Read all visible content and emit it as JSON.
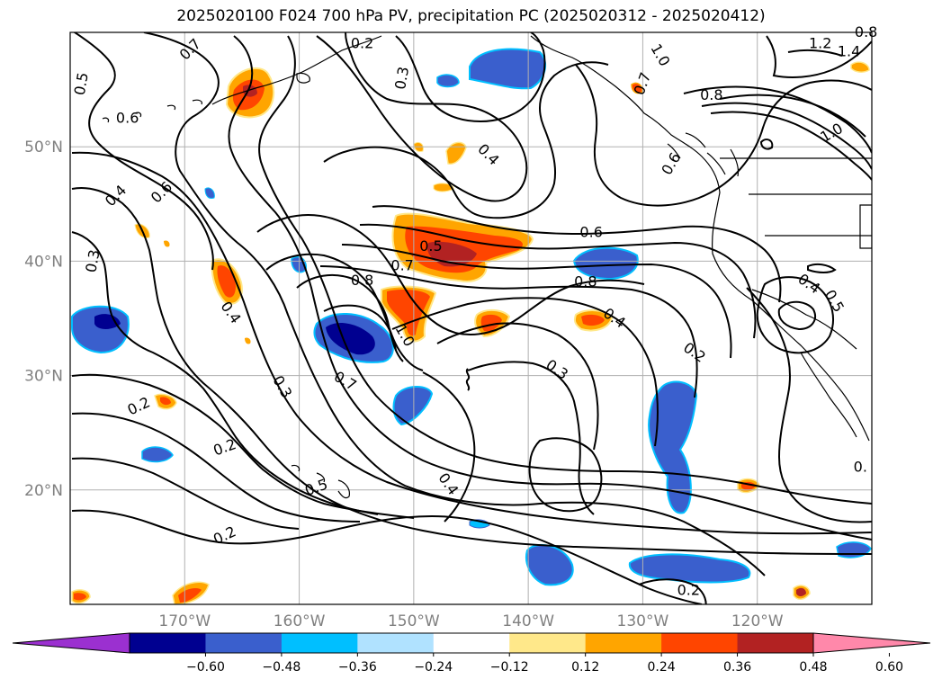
{
  "title": "2025020100 F024 700 hPa PV, precipitation PC (2025020312 - 2025020412)",
  "map": {
    "lon_range": [
      -180,
      -110
    ],
    "lat_range": [
      10,
      60
    ],
    "lat_ticks": [
      {
        "value": 20,
        "label": "20°N"
      },
      {
        "value": 30,
        "label": "30°N"
      },
      {
        "value": 40,
        "label": "40°N"
      },
      {
        "value": 50,
        "label": "50°N"
      }
    ],
    "lon_ticks": [
      {
        "value": -170,
        "label": "170°W"
      },
      {
        "value": -160,
        "label": "160°W"
      },
      {
        "value": -150,
        "label": "150°W"
      },
      {
        "value": -140,
        "label": "140°W"
      },
      {
        "value": -130,
        "label": "130°W"
      },
      {
        "value": -120,
        "label": "120°W"
      }
    ],
    "gridlines": true,
    "colors": {
      "coast": "#000000",
      "grid": "#b0b0b0",
      "contour": "#000000"
    }
  },
  "colorbar": {
    "ticks": [
      "−0.60",
      "−0.48",
      "−0.36",
      "−0.24",
      "−0.12",
      "0.12",
      "0.24",
      "0.36",
      "0.48",
      "0.60"
    ],
    "colors": [
      "#9b30d0",
      "#000090",
      "#3a5fcd",
      "#00bfff",
      "#b0e2ff",
      "#ffffff",
      "#ffe88a",
      "#ffa500",
      "#ff4500",
      "#b22222",
      "#ff88aa"
    ],
    "extend": "both"
  },
  "pv_labels": [
    {
      "lon": -169.5,
      "lat": 58.5,
      "text": "0.7",
      "rot": 45
    },
    {
      "lon": -154.5,
      "lat": 59,
      "text": "0.2",
      "rot": 0
    },
    {
      "lon": -179,
      "lat": 55.5,
      "text": "0.5",
      "rot": 80
    },
    {
      "lon": -175,
      "lat": 52.5,
      "text": "0.6",
      "rot": 0
    },
    {
      "lon": -151,
      "lat": 56,
      "text": "0.3",
      "rot": 80
    },
    {
      "lon": -130,
      "lat": 55.5,
      "text": "0.7",
      "rot": 70
    },
    {
      "lon": -128.5,
      "lat": 58,
      "text": "1.0",
      "rot": -60
    },
    {
      "lon": -127.5,
      "lat": 48.5,
      "text": "0.6",
      "rot": 60
    },
    {
      "lon": -114.5,
      "lat": 59,
      "text": "1.2",
      "rot": 0
    },
    {
      "lon": -112,
      "lat": 58.3,
      "text": "1.4",
      "rot": 0
    },
    {
      "lon": -110.5,
      "lat": 60,
      "text": "0.8",
      "rot": 0
    },
    {
      "lon": -124,
      "lat": 54.5,
      "text": "0.8",
      "rot": 0
    },
    {
      "lon": -113.5,
      "lat": 51.2,
      "text": "1.0",
      "rot": 30
    },
    {
      "lon": -143.5,
      "lat": 49.3,
      "text": "0.4",
      "rot": -45
    },
    {
      "lon": -176,
      "lat": 45.7,
      "text": "0.4",
      "rot": 45
    },
    {
      "lon": -172,
      "lat": 46,
      "text": "0.6",
      "rot": 45
    },
    {
      "lon": -178,
      "lat": 40,
      "text": "0.3",
      "rot": 80
    },
    {
      "lon": -148.5,
      "lat": 41.3,
      "text": "0.5",
      "rot": 0
    },
    {
      "lon": -151,
      "lat": 39.6,
      "text": "0.7",
      "rot": 0
    },
    {
      "lon": -154.5,
      "lat": 38.3,
      "text": "0.8",
      "rot": 0
    },
    {
      "lon": -134.5,
      "lat": 42.5,
      "text": "0.6",
      "rot": 0
    },
    {
      "lon": -135,
      "lat": 38.2,
      "text": "0.8",
      "rot": 0
    },
    {
      "lon": -150.8,
      "lat": 33.5,
      "text": "1.0",
      "rot": -60
    },
    {
      "lon": -166,
      "lat": 35.5,
      "text": "0.4",
      "rot": -55
    },
    {
      "lon": -161.5,
      "lat": 29,
      "text": "0.3",
      "rot": -60
    },
    {
      "lon": -156,
      "lat": 29.5,
      "text": "0.7",
      "rot": -30
    },
    {
      "lon": -132.5,
      "lat": 35,
      "text": "0.4",
      "rot": -35
    },
    {
      "lon": -125.5,
      "lat": 32,
      "text": "0.2",
      "rot": -35
    },
    {
      "lon": -137.5,
      "lat": 30.5,
      "text": "0.3",
      "rot": -35
    },
    {
      "lon": -115.5,
      "lat": 38,
      "text": "0.4",
      "rot": -35
    },
    {
      "lon": -113.3,
      "lat": 36.5,
      "text": "0.5",
      "rot": -60
    },
    {
      "lon": -174,
      "lat": 27.3,
      "text": "0.2",
      "rot": 25
    },
    {
      "lon": -166.5,
      "lat": 23.7,
      "text": "0.2",
      "rot": 20
    },
    {
      "lon": -158.5,
      "lat": 20.2,
      "text": "0.5",
      "rot": 20
    },
    {
      "lon": -147,
      "lat": 20.5,
      "text": "0.4",
      "rot": -55
    },
    {
      "lon": -111,
      "lat": 22,
      "text": "0.",
      "rot": 0
    },
    {
      "lon": -166.5,
      "lat": 16,
      "text": "0.2",
      "rot": 25
    },
    {
      "lon": -126,
      "lat": 11.2,
      "text": "0.2",
      "rot": 0
    },
    {
      "lon": -155,
      "lat": 12,
      "text": "",
      "rot": 0
    }
  ]
}
